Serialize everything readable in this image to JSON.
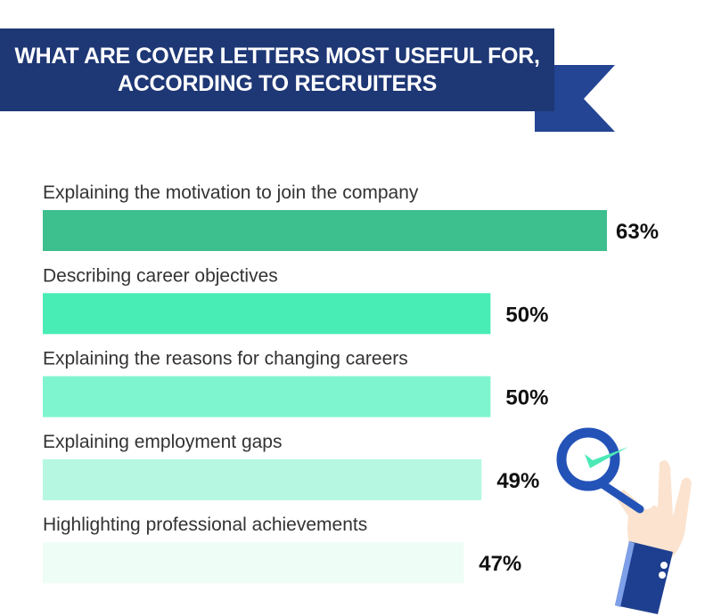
{
  "chart_data": {
    "type": "bar",
    "orientation": "horizontal",
    "title_lines": [
      "WHAT ARE COVER LETTERS MOST USEFUL FOR,",
      "ACCORDING TO RECRUITERS"
    ],
    "categories": [
      "Explaining the motivation to join the company",
      "Describing career objectives",
      "Explaining the reasons for changing careers",
      "Explaining employment gaps",
      "Highlighting professional achievements"
    ],
    "values": [
      63,
      50,
      50,
      49,
      47
    ],
    "value_labels": [
      "63%",
      "50%",
      "50%",
      "49%",
      "47%"
    ],
    "unit": "%",
    "xlim": [
      0,
      63
    ],
    "grid": false,
    "colors": [
      "#3dbf8e",
      "#47edb5",
      "#7ff5cf",
      "#b5f7e1",
      "#eefdf6"
    ]
  },
  "colors": {
    "banner": "#1e3775",
    "ribbon_tail": "#234593"
  },
  "illustration": "hand-holding-magnifier-with-checkmark-icon"
}
